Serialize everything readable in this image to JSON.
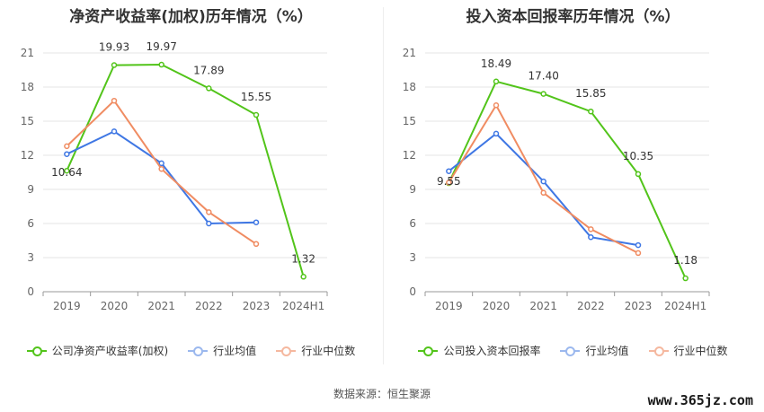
{
  "source_note": "数据来源：恒生聚源",
  "watermark": "www.365jz.com",
  "chart_data": [
    {
      "type": "line",
      "title": "净资产收益率(加权)历年情况（%）",
      "categories": [
        "2019",
        "2020",
        "2021",
        "2022",
        "2023",
        "2024H1"
      ],
      "ylim": [
        0,
        21
      ],
      "yticks": [
        0,
        3,
        6,
        9,
        12,
        15,
        18,
        21
      ],
      "grid": true,
      "legend_position": "bottom",
      "series": [
        {
          "name": "公司净资产收益率(加权)",
          "color": "#52c41a",
          "values": [
            10.64,
            19.93,
            19.97,
            17.89,
            15.55,
            1.32
          ],
          "labels": [
            "10.64",
            "19.93",
            "19.97",
            "17.89",
            "15.55",
            "1.32"
          ]
        },
        {
          "name": "行业均值",
          "color": "#3f77e4",
          "values": [
            12.1,
            14.1,
            11.3,
            6.0,
            6.1,
            null
          ],
          "labels": []
        },
        {
          "name": "行业中位数",
          "color": "#f08c62",
          "values": [
            12.8,
            16.8,
            10.8,
            7.0,
            4.2,
            null
          ],
          "labels": []
        }
      ]
    },
    {
      "type": "line",
      "title": "投入资本回报率历年情况（%）",
      "categories": [
        "2019",
        "2020",
        "2021",
        "2022",
        "2023",
        "2024H1"
      ],
      "ylim": [
        0,
        21
      ],
      "yticks": [
        0,
        3,
        6,
        9,
        12,
        15,
        18,
        21
      ],
      "grid": true,
      "legend_position": "bottom",
      "series": [
        {
          "name": "公司投入资本回报率",
          "color": "#52c41a",
          "values": [
            9.55,
            18.49,
            17.4,
            15.85,
            10.35,
            1.18
          ],
          "labels": [
            "9.55",
            "18.49",
            "17.40",
            "15.85",
            "10.35",
            "1.18"
          ]
        },
        {
          "name": "行业均值",
          "color": "#3f77e4",
          "values": [
            10.6,
            13.9,
            9.7,
            4.8,
            4.1,
            null
          ],
          "labels": []
        },
        {
          "name": "行业中位数",
          "color": "#f08c62",
          "values": [
            9.6,
            16.4,
            8.7,
            5.5,
            3.4,
            null
          ],
          "labels": []
        }
      ]
    }
  ]
}
